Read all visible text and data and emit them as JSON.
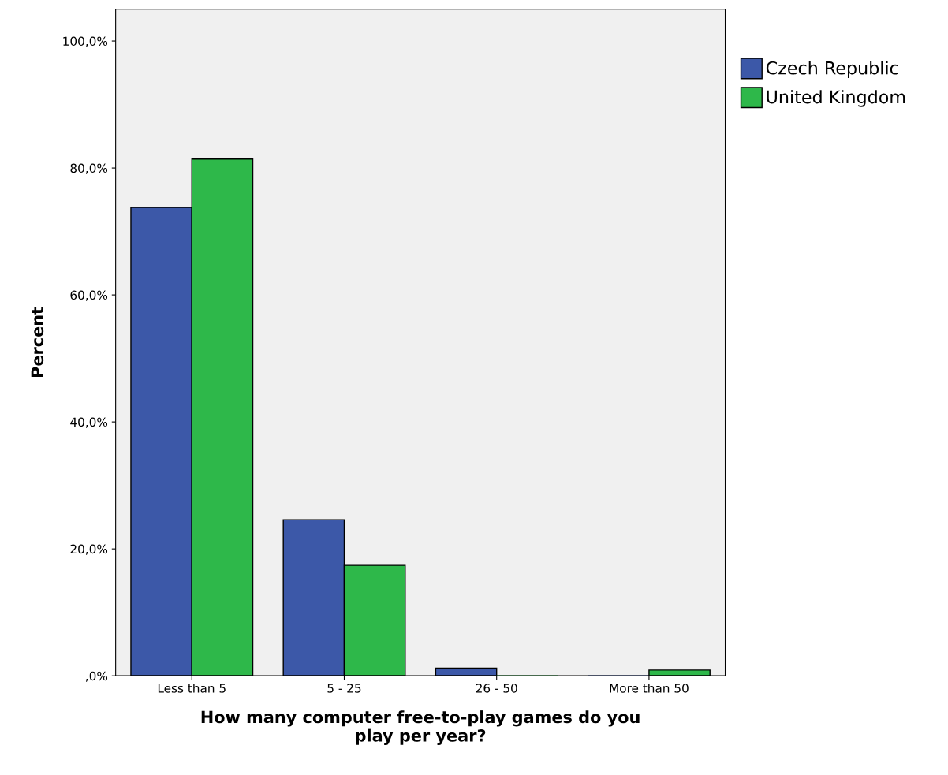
{
  "chart_data": {
    "type": "bar",
    "xlabel": "How many computer free-to-play games do you\nplay per year?",
    "ylabel": "Percent",
    "categories": [
      "Less than 5",
      "5 - 25",
      "26 - 50",
      "More than 50"
    ],
    "series": [
      {
        "name": "Czech Republic",
        "color": "#3c58a8",
        "values": [
          73.8,
          24.6,
          1.2,
          0
        ]
      },
      {
        "name": "United Kingdom",
        "color": "#2eb84a",
        "values": [
          81.4,
          17.4,
          0,
          0.9
        ]
      }
    ],
    "ylim": [
      0,
      105
    ],
    "yticks": [
      {
        "value": 0,
        "label": ",0%"
      },
      {
        "value": 20,
        "label": "20,0%"
      },
      {
        "value": 40,
        "label": "40,0%"
      },
      {
        "value": 60,
        "label": "60,0%"
      },
      {
        "value": 80,
        "label": "80,0%"
      },
      {
        "value": 100,
        "label": "100,0%"
      }
    ],
    "grid": false,
    "legend": "top right"
  }
}
